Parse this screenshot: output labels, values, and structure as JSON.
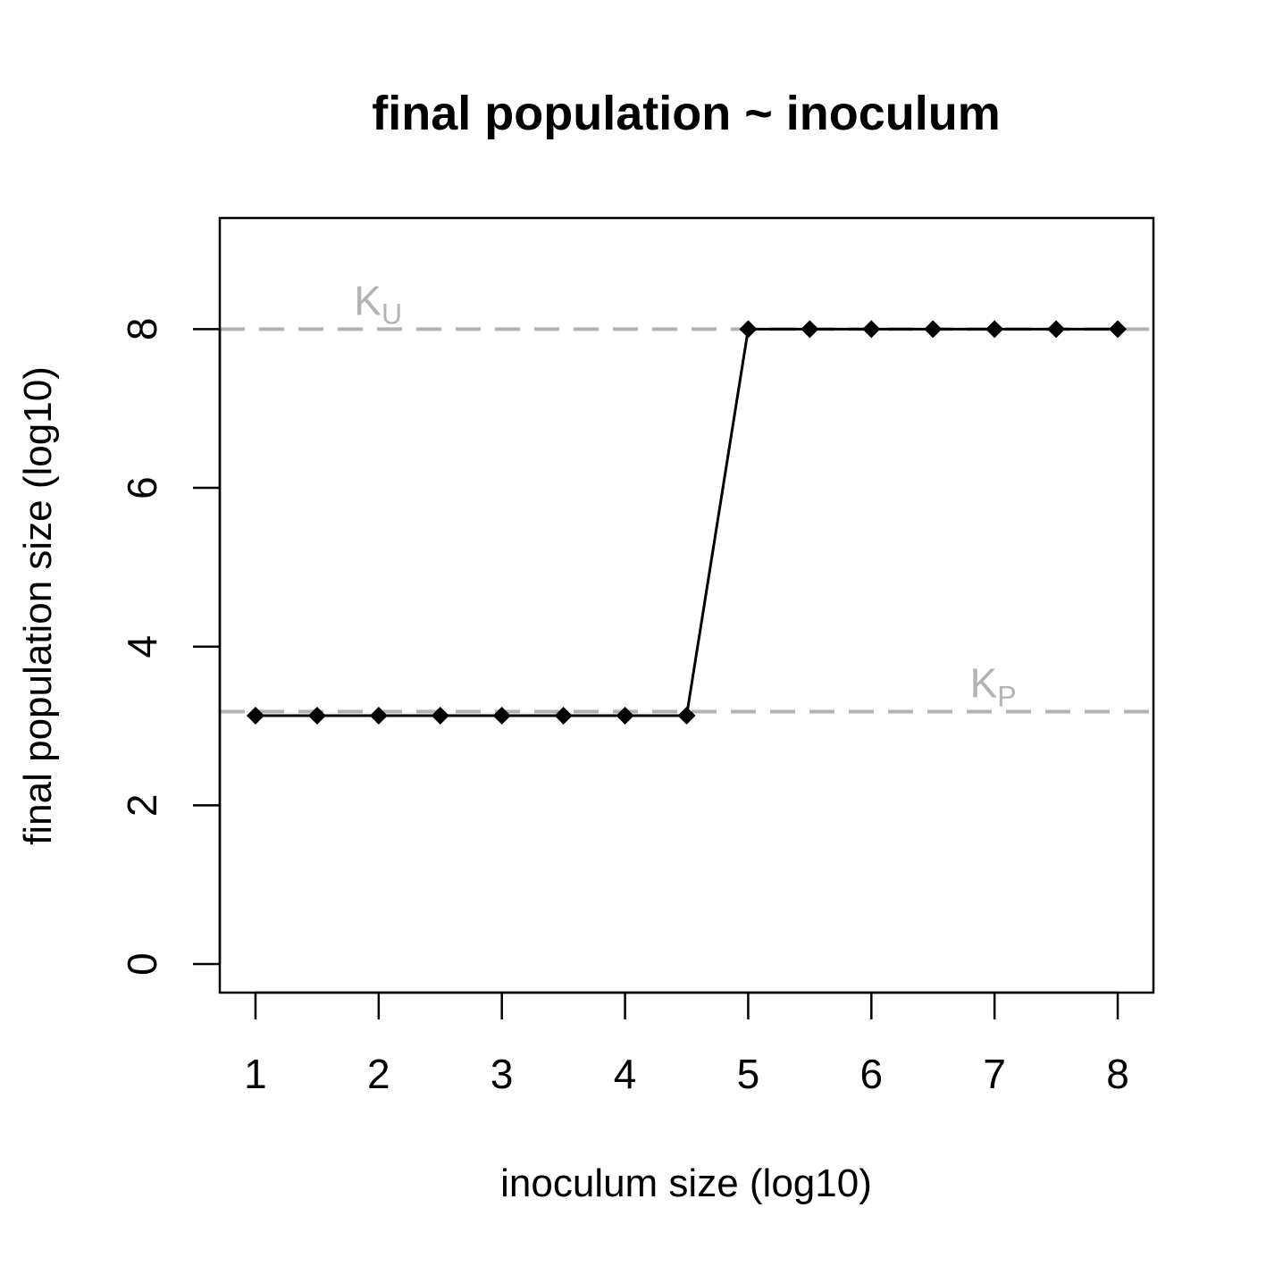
{
  "chart_data": {
    "type": "line",
    "title": "final population ~ inoculum",
    "xlabel": "inoculum size (log10)",
    "ylabel": "final population size (log10)",
    "xlim": [
      0.71,
      8.29
    ],
    "ylim": [
      -0.36,
      9.4
    ],
    "x_ticks": [
      1,
      2,
      3,
      4,
      5,
      6,
      7,
      8
    ],
    "y_ticks": [
      0,
      2,
      4,
      6,
      8
    ],
    "grid": false,
    "series": [
      {
        "x": [
          1,
          1.5,
          2,
          2.5,
          3,
          3.5,
          4,
          4.5,
          5,
          5.5,
          6,
          6.5,
          7,
          7.5,
          8
        ],
        "y": [
          3.13,
          3.13,
          3.13,
          3.13,
          3.13,
          3.13,
          3.13,
          3.13,
          8,
          8,
          8,
          8,
          8,
          8,
          8
        ],
        "color": "#000000",
        "marker": "diamond"
      }
    ],
    "reference_lines": [
      {
        "label_main": "K",
        "label_sub": "U",
        "y": 8,
        "label_x": 1.8,
        "color": "#b3b3b3"
      },
      {
        "label_main": "K",
        "label_sub": "P",
        "y": 3.18,
        "label_x": 6.8,
        "color": "#b3b3b3"
      }
    ]
  }
}
